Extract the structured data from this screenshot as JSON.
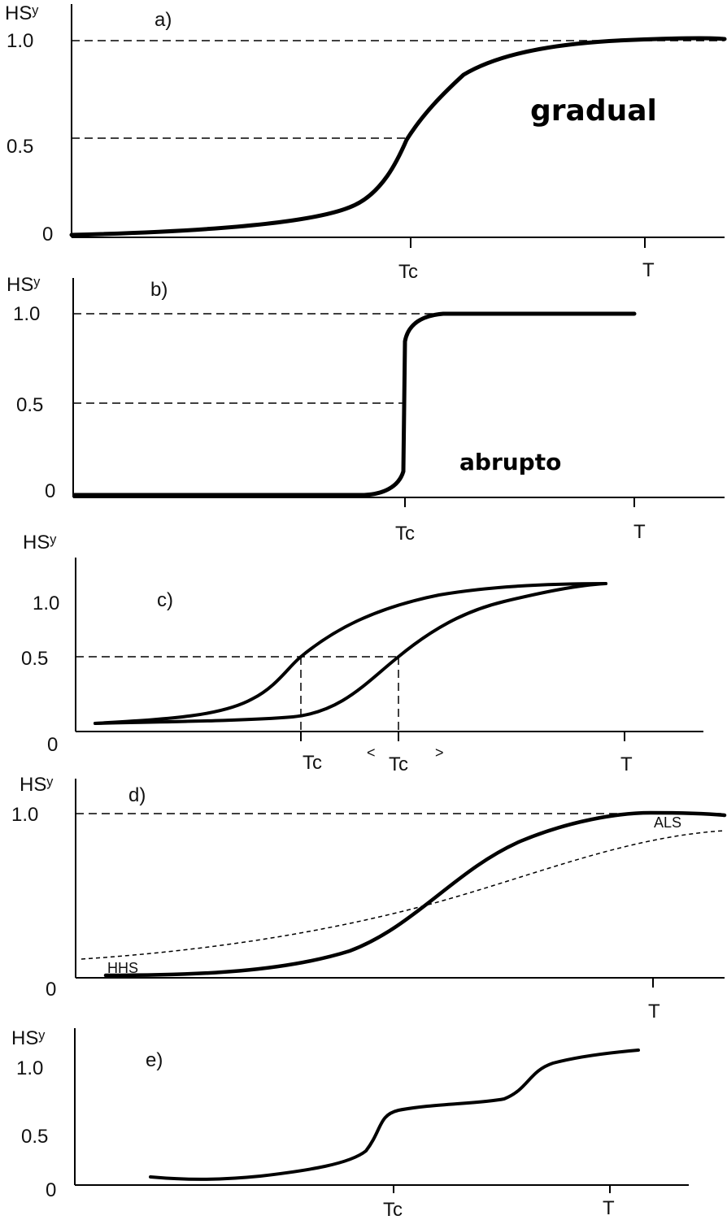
{
  "panels": [
    {
      "panel_label": "a)",
      "y_label": "HSʸ",
      "y_ticks": [
        "1.0",
        "0.5",
        "0"
      ],
      "x_ticks": [
        "Tc",
        "T"
      ],
      "annotation": "gradual"
    },
    {
      "panel_label": "b)",
      "y_label": "HSʸ",
      "y_ticks": [
        "1.0",
        "0.5",
        "0"
      ],
      "x_ticks": [
        "Tc",
        "T"
      ],
      "annotation": "abrupto"
    },
    {
      "panel_label": "c)",
      "y_label": "HSʸ",
      "y_ticks": [
        "1.0",
        "0.5",
        "0"
      ],
      "x_ticks": [
        "Tc",
        "<",
        "Tc",
        ">",
        "T"
      ]
    },
    {
      "panel_label": "d)",
      "y_label": "HSʸ",
      "y_ticks": [
        "1.0",
        "0"
      ],
      "x_ticks": [
        "T"
      ],
      "curve_labels": [
        "HHS",
        "ALS"
      ]
    },
    {
      "panel_label": "e)",
      "y_label": "HSʸ",
      "y_ticks": [
        "1.0",
        "0.5",
        "0"
      ],
      "x_ticks": [
        "Tc",
        "T"
      ]
    }
  ],
  "colors": {
    "line": "#000000",
    "background": "#ffffff"
  }
}
